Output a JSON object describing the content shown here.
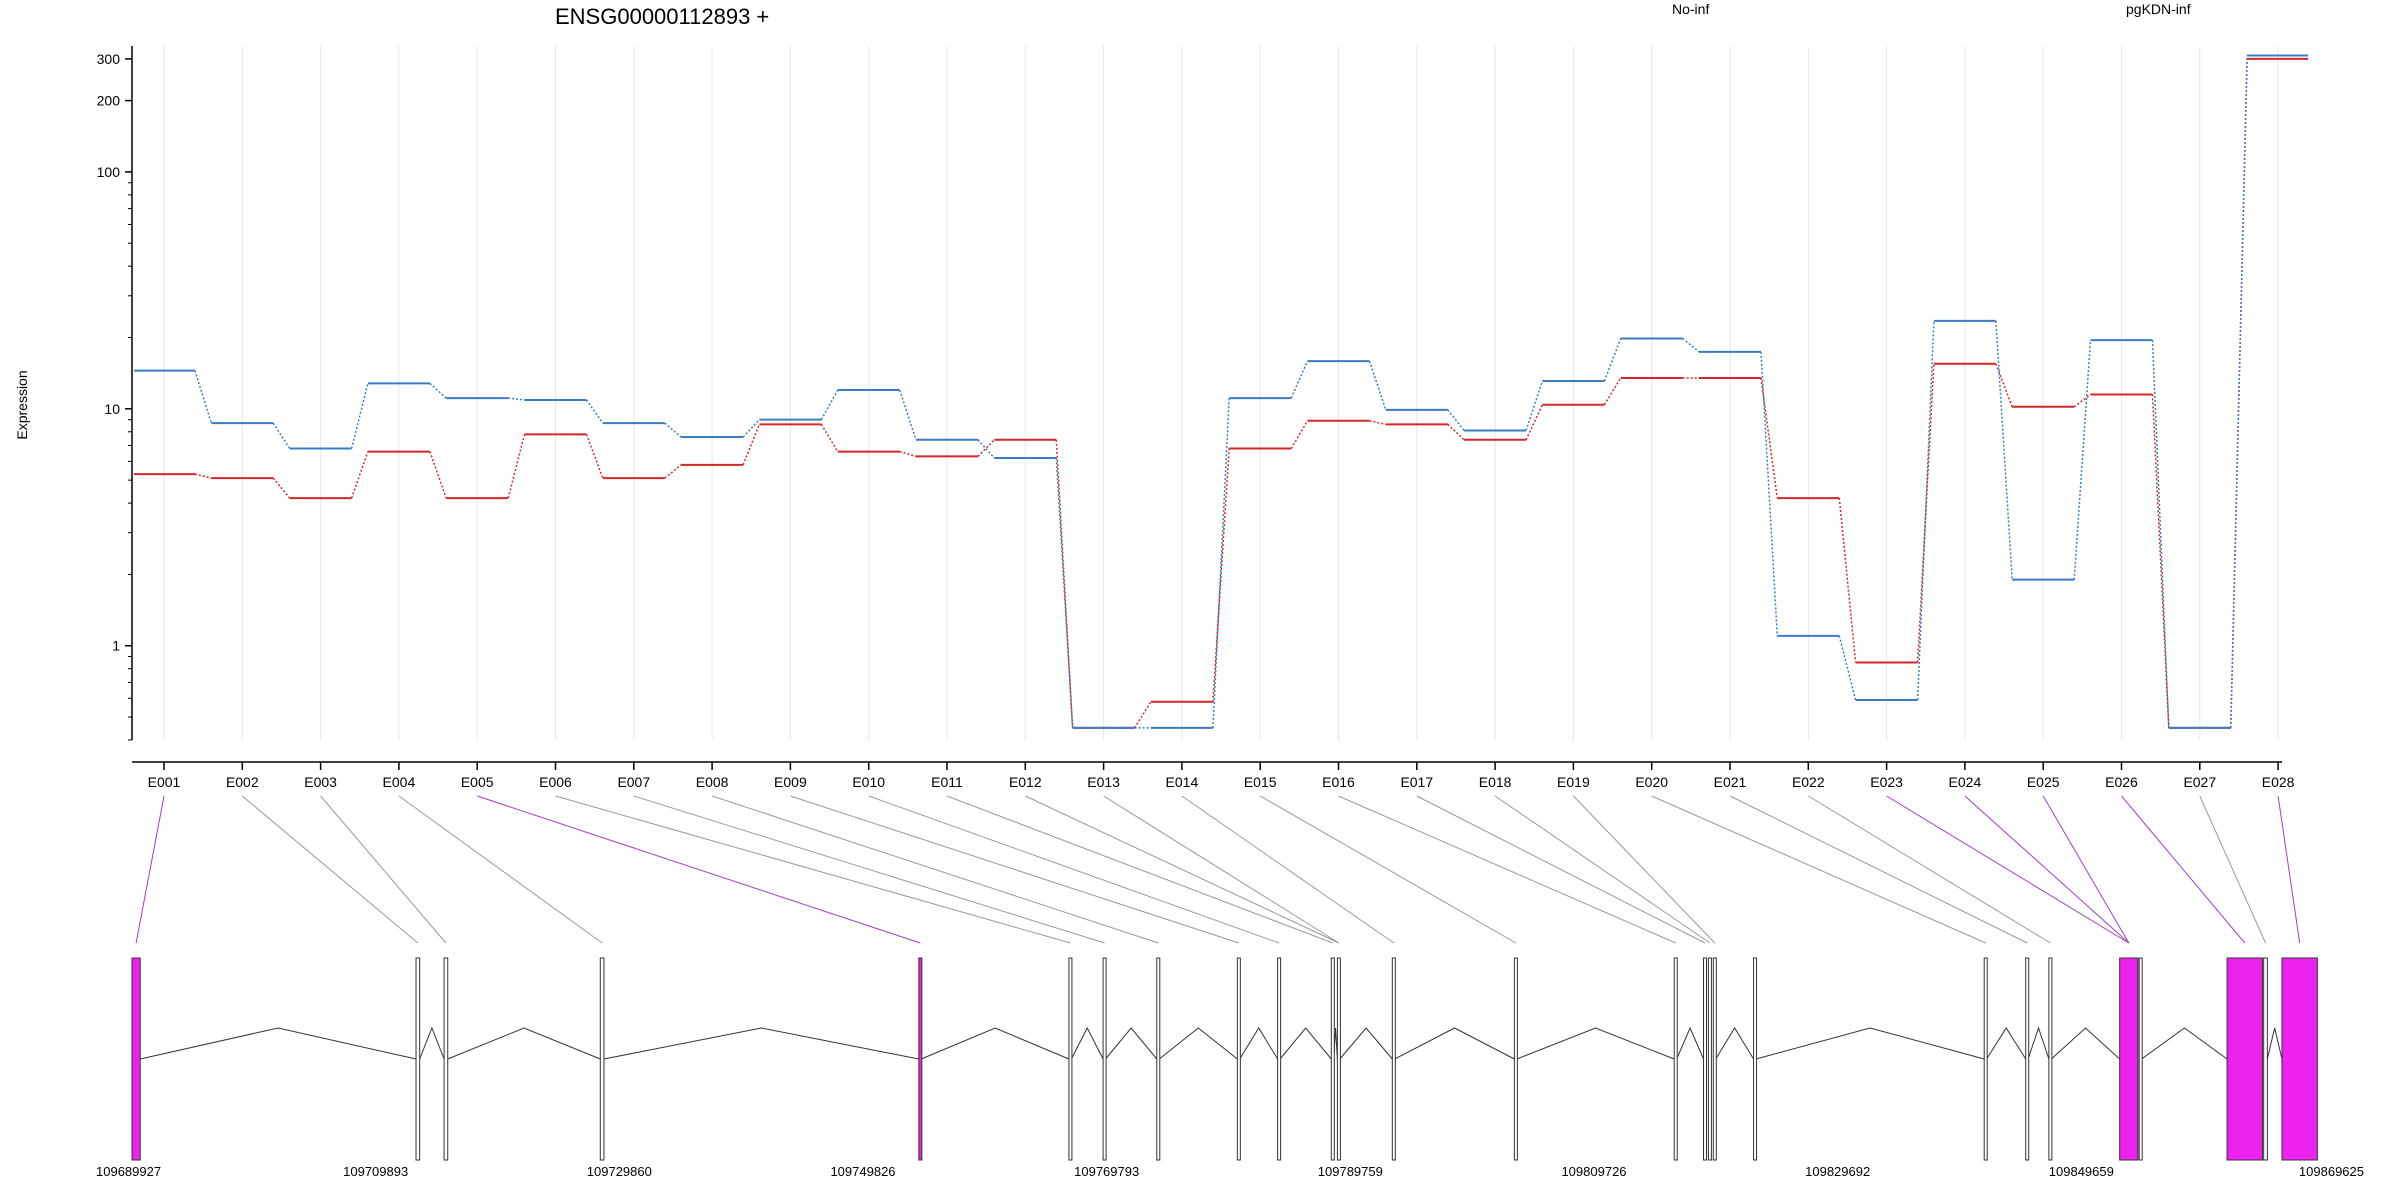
{
  "chart_data": {
    "type": "line",
    "title": "ENSG00000112893 +",
    "ylabel": "Expression",
    "yscale": "log",
    "ylim": [
      0.4,
      340
    ],
    "yticks": [
      1,
      10,
      100,
      200,
      300
    ],
    "grid": "vertical",
    "legend_position": "top",
    "categories": [
      "E001",
      "E002",
      "E003",
      "E004",
      "E005",
      "E006",
      "E007",
      "E008",
      "E009",
      "E010",
      "E011",
      "E012",
      "E013",
      "E014",
      "E015",
      "E016",
      "E017",
      "E018",
      "E019",
      "E020",
      "E021",
      "E022",
      "E023",
      "E024",
      "E025",
      "E026",
      "E027",
      "E028"
    ],
    "series": [
      {
        "name": "No-inf",
        "color": "#d62728",
        "values": [
          5.3,
          5.1,
          4.2,
          6.6,
          4.2,
          7.8,
          5.1,
          5.8,
          8.6,
          6.6,
          6.3,
          7.4,
          0.45,
          0.58,
          6.8,
          8.9,
          8.6,
          7.4,
          10.4,
          13.5,
          13.5,
          4.2,
          0.85,
          15.5,
          10.2,
          11.5,
          0.45,
          300
        ]
      },
      {
        "name": "pgKDN-inf",
        "color": "#3a7cc4",
        "values": [
          14.5,
          8.7,
          6.8,
          12.8,
          11.1,
          10.9,
          8.7,
          7.6,
          9.0,
          12.0,
          7.4,
          6.2,
          0.45,
          0.45,
          11.1,
          15.9,
          9.9,
          8.1,
          13.1,
          19.8,
          17.4,
          1.1,
          0.59,
          23.5,
          1.9,
          19.5,
          0.45,
          310
        ]
      }
    ],
    "gene_model": {
      "coordinate_labels": [
        "109689927",
        "109709893",
        "109729860",
        "109749826",
        "109769793",
        "109789759",
        "109809726",
        "109829692",
        "109849659",
        "109869625"
      ],
      "start": 109689927,
      "end": 109869625,
      "exons": [
        {
          "start": 109689927,
          "end": 109690600,
          "highlight": true
        },
        {
          "start": 109713200,
          "end": 109713500,
          "highlight": false
        },
        {
          "start": 109715500,
          "end": 109715800,
          "highlight": false
        },
        {
          "start": 109728300,
          "end": 109728600,
          "highlight": false
        },
        {
          "start": 109754400,
          "end": 109754600,
          "highlight": true
        },
        {
          "start": 109766700,
          "end": 109766900,
          "highlight": false
        },
        {
          "start": 109769500,
          "end": 109769700,
          "highlight": false
        },
        {
          "start": 109773900,
          "end": 109774100,
          "highlight": false
        },
        {
          "start": 109780500,
          "end": 109780700,
          "highlight": false
        },
        {
          "start": 109783800,
          "end": 109784000,
          "highlight": false
        },
        {
          "start": 109788200,
          "end": 109788400,
          "highlight": false
        },
        {
          "start": 109788700,
          "end": 109788900,
          "highlight": false
        },
        {
          "start": 109793200,
          "end": 109793400,
          "highlight": false
        },
        {
          "start": 109803200,
          "end": 109803400,
          "highlight": false
        },
        {
          "start": 109816300,
          "end": 109816500,
          "highlight": false
        },
        {
          "start": 109818700,
          "end": 109818900,
          "highlight": false
        },
        {
          "start": 109819100,
          "end": 109819300,
          "highlight": false
        },
        {
          "start": 109819500,
          "end": 109819700,
          "highlight": false
        },
        {
          "start": 109822800,
          "end": 109823000,
          "highlight": false
        },
        {
          "start": 109841700,
          "end": 109841900,
          "highlight": false
        },
        {
          "start": 109845100,
          "end": 109845300,
          "highlight": false
        },
        {
          "start": 109847000,
          "end": 109847200,
          "highlight": false
        },
        {
          "start": 109852800,
          "end": 109854300,
          "highlight": true
        },
        {
          "start": 109854400,
          "end": 109854600,
          "highlight": false
        },
        {
          "start": 109861600,
          "end": 109864500,
          "highlight": true
        },
        {
          "start": 109864600,
          "end": 109864900,
          "highlight": false
        },
        {
          "start": 109866100,
          "end": 109869000,
          "highlight": true
        }
      ],
      "bin_exon_map": [
        0,
        1,
        2,
        3,
        4,
        5,
        6,
        7,
        8,
        9,
        10,
        11,
        11,
        12,
        13,
        14,
        15,
        16,
        17,
        19,
        20,
        21,
        22,
        22,
        22,
        24,
        25,
        26
      ],
      "exon_color": "#ee22ee",
      "highlight_link_color": "#a040c0"
    }
  }
}
